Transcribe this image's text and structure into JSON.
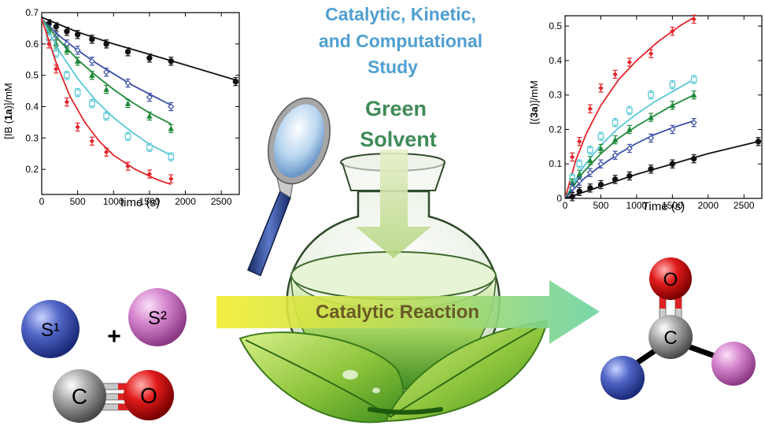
{
  "headline": {
    "lines": [
      "Catalytic, Kinetic,",
      "and Computational",
      "Study"
    ],
    "color": "#4f9fd1"
  },
  "green_solvent": {
    "lines": [
      "Green",
      "Solvent"
    ],
    "color": "#3f8a57"
  },
  "reaction_arrow": {
    "label": "Catalytic Reaction",
    "label_color": "#6a5a26"
  },
  "molecules": {
    "s1_label": "S¹",
    "s2_label": "S²",
    "plus": "+",
    "co_c": "C",
    "co_o": "O",
    "product_c": "C",
    "product_o": "O"
  },
  "icons": [
    "magnifying-glass-icon",
    "flask-icon",
    "leaves-icon",
    "down-arrow-icon"
  ],
  "colors": {
    "red": "#e3262b",
    "cyan": "#56c7d6",
    "green": "#1f8a3a",
    "blue": "#3b4fa6",
    "black": "#111111",
    "s1": "#3a4fb0",
    "s2": "#c96fc0"
  },
  "chart_data": [
    {
      "type": "line",
      "title": "",
      "xlabel": "time (s)",
      "ylabel_parts": [
        "[IB (",
        "1a",
        ")]/mM"
      ],
      "xlim": [
        0,
        2750
      ],
      "ylim": [
        0.12,
        0.7
      ],
      "xticks": [
        "0",
        "500",
        "1000",
        "1500",
        "2000",
        "2500"
      ],
      "yticks": [
        "0.2",
        "0.3",
        "0.4",
        "0.5",
        "0.6",
        "0.7"
      ],
      "xtick_values": [
        0,
        500,
        1000,
        1500,
        2000,
        2500
      ],
      "ytick_values": [
        0.2,
        0.3,
        0.4,
        0.5,
        0.6,
        0.7
      ],
      "series": [
        {
          "color": "#111111",
          "marker": "circle",
          "x": [
            100,
            200,
            350,
            500,
            700,
            900,
            1200,
            1500,
            1800,
            2700
          ],
          "y": [
            0.665,
            0.655,
            0.64,
            0.63,
            0.615,
            0.6,
            0.575,
            0.555,
            0.545,
            0.48
          ],
          "fit": [
            [
              0,
              0.685
            ],
            [
              500,
              0.638
            ],
            [
              1000,
              0.6
            ],
            [
              1500,
              0.567
            ],
            [
              2000,
              0.533
            ],
            [
              2700,
              0.485
            ]
          ]
        },
        {
          "color": "#3b4fa6",
          "marker": "diamond-open",
          "x": [
            100,
            200,
            350,
            500,
            700,
            900,
            1200,
            1500,
            1800
          ],
          "y": [
            0.645,
            0.625,
            0.6,
            0.58,
            0.545,
            0.51,
            0.475,
            0.43,
            0.4
          ],
          "fit": [
            [
              0,
              0.68
            ],
            [
              250,
              0.625
            ],
            [
              500,
              0.58
            ],
            [
              750,
              0.54
            ],
            [
              1000,
              0.505
            ],
            [
              1250,
              0.47
            ],
            [
              1500,
              0.44
            ],
            [
              1800,
              0.405
            ]
          ]
        },
        {
          "color": "#1f8a3a",
          "marker": "triangle",
          "x": [
            100,
            200,
            350,
            500,
            700,
            900,
            1200,
            1500,
            1800
          ],
          "y": [
            0.64,
            0.6,
            0.58,
            0.545,
            0.5,
            0.455,
            0.41,
            0.37,
            0.33
          ],
          "fit": [
            [
              0,
              0.68
            ],
            [
              250,
              0.61
            ],
            [
              500,
              0.55
            ],
            [
              750,
              0.5
            ],
            [
              1000,
              0.455
            ],
            [
              1250,
              0.415
            ],
            [
              1500,
              0.38
            ],
            [
              1800,
              0.345
            ]
          ]
        },
        {
          "color": "#56c7d6",
          "marker": "square-open",
          "x": [
            100,
            200,
            350,
            500,
            700,
            900,
            1200,
            1500,
            1800
          ],
          "y": [
            0.62,
            0.57,
            0.5,
            0.445,
            0.41,
            0.37,
            0.305,
            0.27,
            0.24
          ],
          "fit": [
            [
              0,
              0.68
            ],
            [
              250,
              0.575
            ],
            [
              500,
              0.49
            ],
            [
              750,
              0.42
            ],
            [
              1000,
              0.365
            ],
            [
              1250,
              0.32
            ],
            [
              1500,
              0.28
            ],
            [
              1800,
              0.245
            ]
          ]
        },
        {
          "color": "#e3262b",
          "marker": "diamond",
          "x": [
            100,
            200,
            350,
            500,
            700,
            900,
            1200,
            1500,
            1800
          ],
          "y": [
            0.6,
            0.52,
            0.415,
            0.335,
            0.29,
            0.255,
            0.21,
            0.185,
            0.17
          ],
          "fit": [
            [
              0,
              0.68
            ],
            [
              200,
              0.54
            ],
            [
              400,
              0.43
            ],
            [
              600,
              0.35
            ],
            [
              800,
              0.29
            ],
            [
              1000,
              0.245
            ],
            [
              1300,
              0.2
            ],
            [
              1600,
              0.168
            ],
            [
              1800,
              0.152
            ]
          ]
        }
      ]
    },
    {
      "type": "line",
      "title": "",
      "xlabel": "Time (s)",
      "ylabel_parts": [
        "[(",
        "3a",
        ")]/mM"
      ],
      "xlim": [
        0,
        2750
      ],
      "ylim": [
        0,
        0.53
      ],
      "xticks": [
        "0",
        "500",
        "1000",
        "1500",
        "2000",
        "2500"
      ],
      "yticks": [
        "0",
        "0.1",
        "0.2",
        "0.3",
        "0.4",
        "0.5"
      ],
      "xtick_values": [
        0,
        500,
        1000,
        1500,
        2000,
        2500
      ],
      "ytick_values": [
        0,
        0.1,
        0.2,
        0.3,
        0.4,
        0.5
      ],
      "series": [
        {
          "color": "#e3262b",
          "marker": "diamond",
          "x": [
            100,
            200,
            350,
            500,
            700,
            900,
            1200,
            1500,
            1800
          ],
          "y": [
            0.12,
            0.165,
            0.26,
            0.32,
            0.36,
            0.395,
            0.42,
            0.485,
            0.52
          ],
          "fit": [
            [
              0,
              0.0
            ],
            [
              150,
              0.11
            ],
            [
              300,
              0.19
            ],
            [
              500,
              0.27
            ],
            [
              750,
              0.345
            ],
            [
              1000,
              0.4
            ],
            [
              1300,
              0.455
            ],
            [
              1600,
              0.5
            ],
            [
              1800,
              0.525
            ]
          ]
        },
        {
          "color": "#56c7d6",
          "marker": "square-open",
          "x": [
            100,
            200,
            350,
            500,
            700,
            900,
            1200,
            1500,
            1800
          ],
          "y": [
            0.06,
            0.1,
            0.14,
            0.18,
            0.22,
            0.255,
            0.3,
            0.33,
            0.345
          ],
          "fit": [
            [
              0,
              0.0
            ],
            [
              250,
              0.09
            ],
            [
              500,
              0.155
            ],
            [
              750,
              0.205
            ],
            [
              1000,
              0.245
            ],
            [
              1250,
              0.28
            ],
            [
              1500,
              0.31
            ],
            [
              1800,
              0.345
            ]
          ]
        },
        {
          "color": "#1f8a3a",
          "marker": "triangle",
          "x": [
            100,
            200,
            350,
            500,
            700,
            900,
            1200,
            1500,
            1800
          ],
          "y": [
            0.045,
            0.07,
            0.11,
            0.145,
            0.17,
            0.2,
            0.235,
            0.27,
            0.3
          ],
          "fit": [
            [
              0,
              0.0
            ],
            [
              250,
              0.075
            ],
            [
              500,
              0.13
            ],
            [
              750,
              0.175
            ],
            [
              1000,
              0.21
            ],
            [
              1250,
              0.24
            ],
            [
              1500,
              0.27
            ],
            [
              1800,
              0.3
            ]
          ]
        },
        {
          "color": "#3b4fa6",
          "marker": "diamond-open",
          "x": [
            100,
            200,
            350,
            500,
            700,
            900,
            1200,
            1500,
            1800
          ],
          "y": [
            0.03,
            0.05,
            0.075,
            0.1,
            0.125,
            0.145,
            0.175,
            0.2,
            0.22
          ],
          "fit": [
            [
              0,
              0.0
            ],
            [
              250,
              0.055
            ],
            [
              500,
              0.095
            ],
            [
              750,
              0.13
            ],
            [
              1000,
              0.16
            ],
            [
              1250,
              0.185
            ],
            [
              1500,
              0.205
            ],
            [
              1800,
              0.225
            ]
          ]
        },
        {
          "color": "#111111",
          "marker": "circle",
          "x": [
            100,
            200,
            350,
            500,
            700,
            900,
            1200,
            1500,
            1800,
            2700
          ],
          "y": [
            0.005,
            0.02,
            0.03,
            0.04,
            0.055,
            0.065,
            0.085,
            0.1,
            0.115,
            0.165
          ],
          "fit": [
            [
              0,
              0.0
            ],
            [
              500,
              0.035
            ],
            [
              1000,
              0.07
            ],
            [
              1500,
              0.1
            ],
            [
              2000,
              0.13
            ],
            [
              2700,
              0.165
            ]
          ]
        }
      ]
    }
  ]
}
